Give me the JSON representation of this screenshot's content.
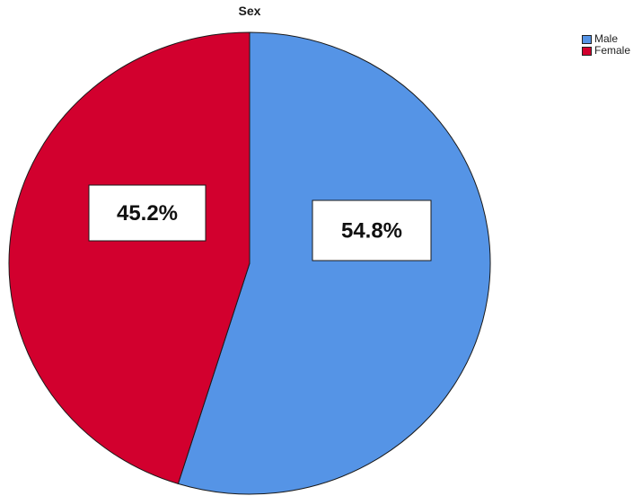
{
  "chart_data": {
    "type": "pie",
    "title": "Sex",
    "categories": [
      "Male",
      "Female"
    ],
    "values": [
      54.8,
      45.2
    ],
    "labels": [
      "54.8%",
      "45.2%"
    ],
    "colors": [
      "#5594e6",
      "#d2002e"
    ],
    "legend_position": "top-right"
  }
}
